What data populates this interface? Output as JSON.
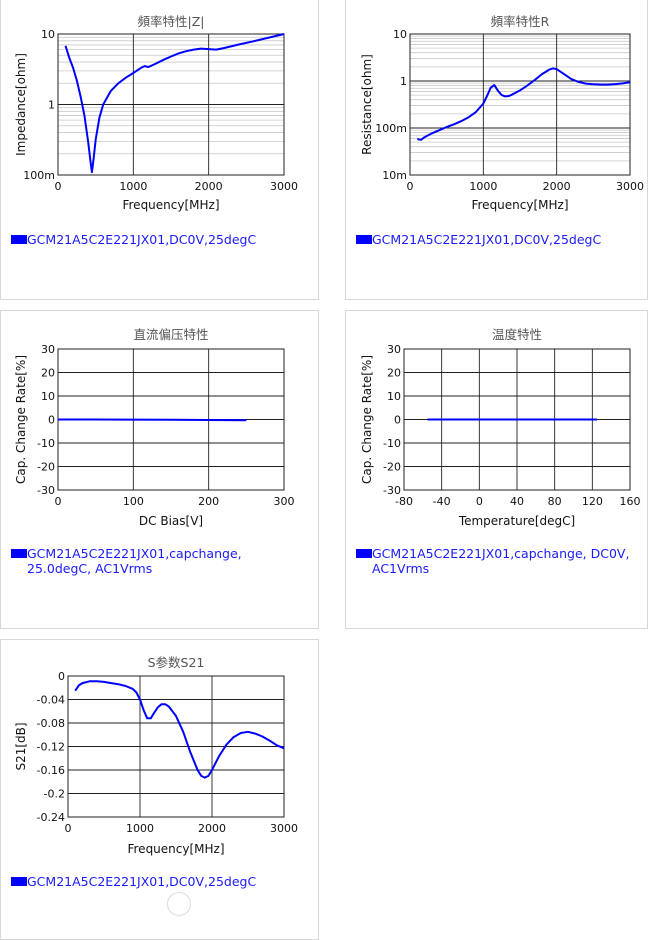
{
  "charts": [
    {
      "id": "c1",
      "title": "頻率特性|Z|",
      "type": "line",
      "x_scale": "linear",
      "y_scale": "log",
      "xlabel": "Frequency[MHz]",
      "ylabel": "Impedance[ohm]",
      "xlim": [
        0,
        3000
      ],
      "ylim": [
        0.1,
        10
      ],
      "xticks": [
        {
          "v": 0,
          "label": "0"
        },
        {
          "v": 1000,
          "label": "1000"
        },
        {
          "v": 2000,
          "label": "2000"
        },
        {
          "v": 3000,
          "label": "3000"
        }
      ],
      "yticks": [
        {
          "v": 0.1,
          "label": "100m"
        },
        {
          "v": 1,
          "label": "1"
        },
        {
          "v": 10,
          "label": "10"
        }
      ],
      "legend": "GCM21A5C2E221JX01,DC0V,25degC",
      "series_color": "#0000ff",
      "x": [
        100,
        150,
        200,
        250,
        300,
        350,
        400,
        430,
        450,
        470,
        500,
        550,
        600,
        700,
        800,
        900,
        1000,
        1100,
        1150,
        1200,
        1300,
        1400,
        1500,
        1600,
        1700,
        1800,
        1900,
        2000,
        2100,
        2200,
        2400,
        2600,
        2800,
        3000
      ],
      "y": [
        6.8,
        4.6,
        3.3,
        2.2,
        1.3,
        0.7,
        0.3,
        0.16,
        0.11,
        0.16,
        0.32,
        0.65,
        1.0,
        1.55,
        2.0,
        2.4,
        2.8,
        3.3,
        3.5,
        3.4,
        3.8,
        4.3,
        4.8,
        5.3,
        5.7,
        6.0,
        6.2,
        6.1,
        6.0,
        6.3,
        7.1,
        7.9,
        8.9,
        10.0
      ]
    },
    {
      "id": "c2",
      "title": "頻率特性R",
      "type": "line",
      "x_scale": "linear",
      "y_scale": "log",
      "xlabel": "Frequency[MHz]",
      "ylabel": "Resistance[ohm]",
      "xlim": [
        0,
        3000
      ],
      "ylim": [
        0.01,
        10
      ],
      "xticks": [
        {
          "v": 0,
          "label": "0"
        },
        {
          "v": 1000,
          "label": "1000"
        },
        {
          "v": 2000,
          "label": "2000"
        },
        {
          "v": 3000,
          "label": "3000"
        }
      ],
      "yticks": [
        {
          "v": 0.01,
          "label": "10m"
        },
        {
          "v": 0.1,
          "label": "100m"
        },
        {
          "v": 1,
          "label": "1"
        },
        {
          "v": 10,
          "label": "10"
        }
      ],
      "legend": "GCM21A5C2E221JX01,DC0V,25degC",
      "series_color": "#0000ff",
      "x": [
        100,
        150,
        200,
        300,
        400,
        500,
        600,
        700,
        800,
        900,
        1000,
        1050,
        1100,
        1150,
        1200,
        1250,
        1300,
        1350,
        1400,
        1500,
        1600,
        1700,
        1800,
        1900,
        1950,
        2000,
        2100,
        2200,
        2300,
        2400,
        2500,
        2600,
        2700,
        2800,
        2900,
        3000
      ],
      "y": [
        0.058,
        0.056,
        0.064,
        0.077,
        0.09,
        0.105,
        0.12,
        0.14,
        0.17,
        0.22,
        0.33,
        0.48,
        0.72,
        0.82,
        0.62,
        0.5,
        0.47,
        0.48,
        0.52,
        0.63,
        0.8,
        1.05,
        1.4,
        1.75,
        1.85,
        1.78,
        1.4,
        1.1,
        0.95,
        0.88,
        0.85,
        0.84,
        0.84,
        0.86,
        0.89,
        0.94
      ]
    },
    {
      "id": "c3",
      "title": "直流偏压特性",
      "type": "line",
      "x_scale": "linear",
      "y_scale": "linear",
      "xlabel": "DC Bias[V]",
      "ylabel": "Cap. Change Rate[%]",
      "xlim": [
        0,
        300
      ],
      "ylim": [
        -30,
        30
      ],
      "xticks": [
        {
          "v": 0,
          "label": "0"
        },
        {
          "v": 100,
          "label": "100"
        },
        {
          "v": 200,
          "label": "200"
        },
        {
          "v": 300,
          "label": "300"
        }
      ],
      "yticks": [
        {
          "v": -30,
          "label": "-30"
        },
        {
          "v": -20,
          "label": "-20"
        },
        {
          "v": -10,
          "label": "-10"
        },
        {
          "v": 0,
          "label": "0"
        },
        {
          "v": 10,
          "label": "10"
        },
        {
          "v": 20,
          "label": "20"
        },
        {
          "v": 30,
          "label": "30"
        }
      ],
      "legend": "GCM21A5C2E221JX01,capchange,\n25.0degC, AC1Vrms",
      "series_color": "#0000ff",
      "x": [
        0,
        50,
        100,
        150,
        200,
        250
      ],
      "y": [
        0,
        0,
        -0.05,
        -0.1,
        -0.2,
        -0.3
      ]
    },
    {
      "id": "c4",
      "title": "温度特性",
      "type": "line",
      "x_scale": "linear",
      "y_scale": "linear",
      "xlabel": "Temperature[degC]",
      "ylabel": "Cap. Change Rate[%]",
      "xlim": [
        -80,
        160
      ],
      "ylim": [
        -30,
        30
      ],
      "xticks": [
        {
          "v": -80,
          "label": "-80"
        },
        {
          "v": -40,
          "label": "-40"
        },
        {
          "v": 0,
          "label": "0"
        },
        {
          "v": 40,
          "label": "40"
        },
        {
          "v": 80,
          "label": "80"
        },
        {
          "v": 120,
          "label": "120"
        },
        {
          "v": 160,
          "label": "160"
        }
      ],
      "yticks": [
        {
          "v": -30,
          "label": "-30"
        },
        {
          "v": -20,
          "label": "-20"
        },
        {
          "v": -10,
          "label": "-10"
        },
        {
          "v": 0,
          "label": "0"
        },
        {
          "v": 10,
          "label": "10"
        },
        {
          "v": 20,
          "label": "20"
        },
        {
          "v": 30,
          "label": "30"
        }
      ],
      "legend": "GCM21A5C2E221JX01,capchange, DC0V,\nAC1Vrms",
      "series_color": "#0000ff",
      "x": [
        -55,
        -25,
        0,
        25,
        50,
        85,
        105,
        125
      ],
      "y": [
        0,
        0,
        0,
        0,
        0,
        0,
        0,
        0
      ]
    },
    {
      "id": "c5",
      "title": "S参数S21",
      "type": "line",
      "x_scale": "linear",
      "y_scale": "linear",
      "xlabel": "Frequency[MHz]",
      "ylabel": "S21[dB]",
      "xlim": [
        0,
        3000
      ],
      "ylim": [
        -0.24,
        0
      ],
      "xticks": [
        {
          "v": 0,
          "label": "0"
        },
        {
          "v": 1000,
          "label": "1000"
        },
        {
          "v": 2000,
          "label": "2000"
        },
        {
          "v": 3000,
          "label": "3000"
        }
      ],
      "yticks": [
        {
          "v": -0.24,
          "label": "-0.24"
        },
        {
          "v": -0.2,
          "label": "-0.2"
        },
        {
          "v": -0.16,
          "label": "-0.16"
        },
        {
          "v": -0.12,
          "label": "-0.12"
        },
        {
          "v": -0.08,
          "label": "-0.08"
        },
        {
          "v": -0.04,
          "label": "-0.04"
        },
        {
          "v": 0,
          "label": "0"
        }
      ],
      "legend": "GCM21A5C2E221JX01,DC0V,25degC",
      "series_color": "#0000ff",
      "x": [
        100,
        150,
        200,
        300,
        400,
        500,
        600,
        700,
        800,
        900,
        950,
        1000,
        1050,
        1100,
        1150,
        1200,
        1250,
        1300,
        1350,
        1400,
        1500,
        1600,
        1700,
        1800,
        1850,
        1900,
        1950,
        2000,
        2050,
        2100,
        2200,
        2300,
        2400,
        2500,
        2600,
        2700,
        2800,
        2900,
        3000
      ],
      "y": [
        -0.025,
        -0.016,
        -0.012,
        -0.009,
        -0.009,
        -0.01,
        -0.012,
        -0.014,
        -0.017,
        -0.022,
        -0.028,
        -0.04,
        -0.058,
        -0.072,
        -0.072,
        -0.062,
        -0.053,
        -0.048,
        -0.048,
        -0.052,
        -0.068,
        -0.095,
        -0.13,
        -0.16,
        -0.17,
        -0.173,
        -0.17,
        -0.16,
        -0.148,
        -0.136,
        -0.117,
        -0.104,
        -0.097,
        -0.095,
        -0.098,
        -0.103,
        -0.11,
        -0.118,
        -0.123
      ]
    }
  ]
}
